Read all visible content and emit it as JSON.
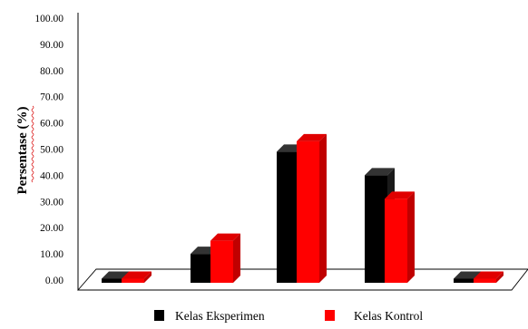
{
  "chart_data": {
    "type": "bar",
    "style": "3d-clustered",
    "ylabel": "Persentase (%)",
    "ylim": [
      0,
      100
    ],
    "yticks": [
      "0.00",
      "10.00",
      "20.00",
      "30.00",
      "40.00",
      "50.00",
      "60.00",
      "70.00",
      "80.00",
      "90.00",
      "100.00"
    ],
    "categories": [
      "",
      "",
      "",
      "",
      ""
    ],
    "series": [
      {
        "name": "Kelas Eksperimen",
        "color": "#000000",
        "values": [
          0.5,
          10,
          49,
          40,
          0.5
        ]
      },
      {
        "name": "Kelas Kontrol",
        "color": "#ff0000",
        "values": [
          0.5,
          15,
          53,
          31,
          0.5
        ]
      }
    ],
    "legend": "bottom",
    "grid": false
  }
}
